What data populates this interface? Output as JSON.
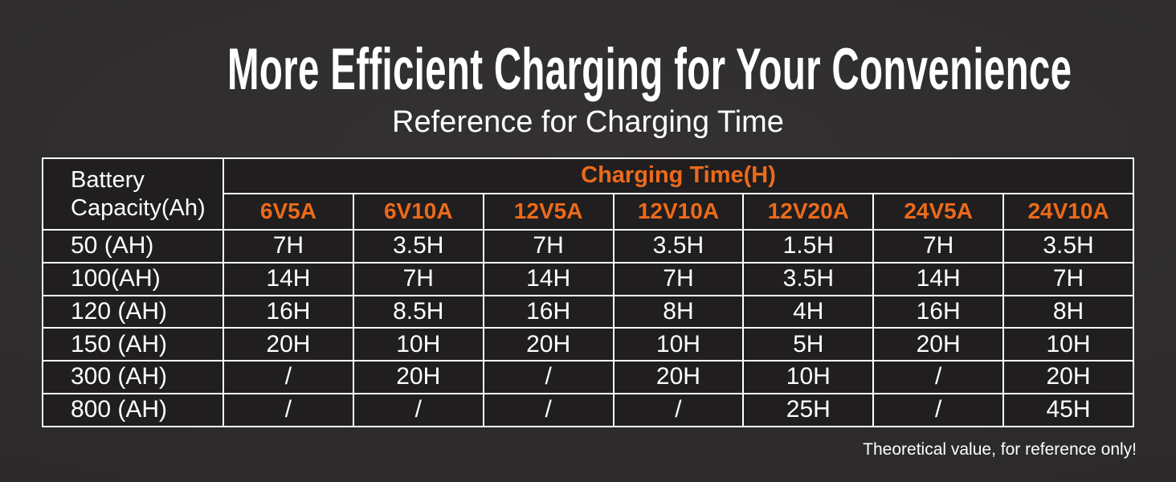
{
  "page": {
    "title": "More Efficient Charging for Your Convenience",
    "subtitle": "Reference for Charging Time",
    "footnote": "Theoretical value, for reference only!"
  },
  "colors": {
    "accent_orange": "#ec6a1a",
    "table_border": "#ffffff",
    "cell_background": "#201e1f",
    "page_background": "#2e2c2d",
    "text": "#ffffff"
  },
  "chart_data": {
    "type": "table",
    "title": "More Efficient Charging for Your Convenience",
    "subtitle": "Reference for Charging Time",
    "corner_header": "Battery\nCapacity(Ah)",
    "group_header": "Charging Time(H)",
    "columns": [
      "6V5A",
      "6V10A",
      "12V5A",
      "12V10A",
      "12V20A",
      "24V5A",
      "24V10A"
    ],
    "rows": [
      {
        "label": "50 (AH)",
        "values": [
          "7H",
          "3.5H",
          "7H",
          "3.5H",
          "1.5H",
          "7H",
          "3.5H"
        ]
      },
      {
        "label": "100(AH)",
        "values": [
          "14H",
          "7H",
          "14H",
          "7H",
          "3.5H",
          "14H",
          "7H"
        ]
      },
      {
        "label": "120 (AH)",
        "values": [
          "16H",
          "8.5H",
          "16H",
          "8H",
          "4H",
          "16H",
          "8H"
        ]
      },
      {
        "label": "150 (AH)",
        "values": [
          "20H",
          "10H",
          "20H",
          "10H",
          "5H",
          "20H",
          "10H"
        ]
      },
      {
        "label": "300 (AH)",
        "values": [
          "/",
          "20H",
          "/",
          "20H",
          "10H",
          "/",
          "20H"
        ]
      },
      {
        "label": "800 (AH)",
        "values": [
          "/",
          "/",
          "/",
          "/",
          "25H",
          "/",
          "45H"
        ]
      }
    ],
    "footnote": "Theoretical value, for reference only!"
  }
}
